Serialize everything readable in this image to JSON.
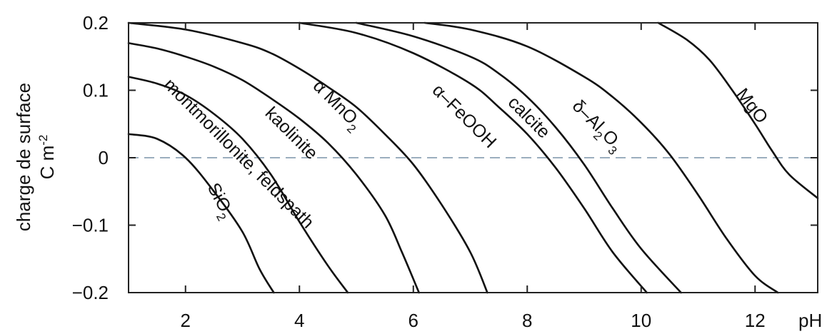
{
  "chart_data": {
    "type": "line",
    "xlabel": "pH",
    "ylabel_line1": "charge de surface",
    "ylabel_line2": "C m",
    "ylabel_sup": "-2",
    "xlim": [
      1,
      13.1
    ],
    "ylim": [
      -0.2,
      0.2
    ],
    "x_ticks": [
      2,
      4,
      6,
      8,
      10,
      12
    ],
    "y_ticks": [
      {
        "value": 0.2,
        "label": "0.2"
      },
      {
        "value": 0.1,
        "label": "0.1"
      },
      {
        "value": 0,
        "label": "0"
      },
      {
        "value": -0.1,
        "label": "−0.1"
      },
      {
        "value": -0.2,
        "label": "−0.2"
      }
    ],
    "reference_line": {
      "y": 0,
      "style": "dashed"
    },
    "series": [
      {
        "name": "SiO2",
        "label_parts": [
          [
            "SiO",
            "normal"
          ],
          [
            "2",
            "sub"
          ]
        ],
        "points": [
          [
            1.0,
            0.035
          ],
          [
            1.5,
            0.028
          ],
          [
            2.0,
            0.0
          ],
          [
            2.5,
            -0.05
          ],
          [
            3.0,
            -0.11
          ],
          [
            3.3,
            -0.165
          ],
          [
            3.55,
            -0.2
          ]
        ]
      },
      {
        "name": "montmorillonite, feldspath",
        "label_parts": [
          [
            "montmorillonite, feldspath",
            "normal"
          ]
        ],
        "points": [
          [
            1.0,
            0.12
          ],
          [
            1.5,
            0.11
          ],
          [
            2.0,
            0.093
          ],
          [
            2.5,
            0.065
          ],
          [
            3.0,
            0.028
          ],
          [
            3.5,
            -0.025
          ],
          [
            4.0,
            -0.095
          ],
          [
            4.5,
            -0.16
          ],
          [
            4.85,
            -0.2
          ]
        ]
      },
      {
        "name": "kaolinite",
        "label_parts": [
          [
            "kaolinite",
            "normal"
          ]
        ],
        "points": [
          [
            1.0,
            0.17
          ],
          [
            1.5,
            0.162
          ],
          [
            2.0,
            0.15
          ],
          [
            2.5,
            0.135
          ],
          [
            3.0,
            0.115
          ],
          [
            3.5,
            0.088
          ],
          [
            4.0,
            0.058
          ],
          [
            4.5,
            0.022
          ],
          [
            5.0,
            -0.025
          ],
          [
            5.5,
            -0.085
          ],
          [
            5.8,
            -0.14
          ],
          [
            6.1,
            -0.2
          ]
        ]
      },
      {
        "name": "α MnO2",
        "label_parts": [
          [
            "α MnO",
            "normal"
          ],
          [
            "2",
            "sub"
          ]
        ],
        "points": [
          [
            1.0,
            0.2
          ],
          [
            2.0,
            0.19
          ],
          [
            3.0,
            0.17
          ],
          [
            3.5,
            0.155
          ],
          [
            4.0,
            0.132
          ],
          [
            4.5,
            0.105
          ],
          [
            5.0,
            0.075
          ],
          [
            5.5,
            0.035
          ],
          [
            6.0,
            -0.01
          ],
          [
            6.5,
            -0.07
          ],
          [
            7.0,
            -0.14
          ],
          [
            7.3,
            -0.2
          ]
        ]
      },
      {
        "name": "α-FeOOH",
        "label_parts": [
          [
            "α–FeOOH",
            "normal"
          ]
        ],
        "points": [
          [
            4.0,
            0.2
          ],
          [
            5.0,
            0.185
          ],
          [
            6.0,
            0.155
          ],
          [
            7.0,
            0.11
          ],
          [
            7.5,
            0.075
          ],
          [
            8.0,
            0.035
          ],
          [
            8.5,
            -0.015
          ],
          [
            9.0,
            -0.075
          ],
          [
            9.5,
            -0.14
          ],
          [
            10.1,
            -0.2
          ]
        ]
      },
      {
        "name": "calcite",
        "label_parts": [
          [
            "calcite",
            "normal"
          ]
        ],
        "points": [
          [
            5.0,
            0.2
          ],
          [
            6.0,
            0.18
          ],
          [
            7.0,
            0.15
          ],
          [
            7.5,
            0.125
          ],
          [
            8.0,
            0.09
          ],
          [
            8.5,
            0.045
          ],
          [
            9.0,
            -0.01
          ],
          [
            9.5,
            -0.075
          ],
          [
            10.0,
            -0.135
          ],
          [
            10.7,
            -0.2
          ]
        ]
      },
      {
        "name": "δ-Al2O3",
        "label_parts": [
          [
            "δ–Al",
            "normal"
          ],
          [
            "2",
            "sub"
          ],
          [
            "O",
            "normal"
          ],
          [
            "3",
            "sub"
          ]
        ],
        "points": [
          [
            6.2,
            0.2
          ],
          [
            7.0,
            0.19
          ],
          [
            8.0,
            0.165
          ],
          [
            9.0,
            0.12
          ],
          [
            9.5,
            0.09
          ],
          [
            10.0,
            0.052
          ],
          [
            10.5,
            0.005
          ],
          [
            11.0,
            -0.055
          ],
          [
            11.5,
            -0.12
          ],
          [
            12.0,
            -0.175
          ],
          [
            12.4,
            -0.2
          ]
        ]
      },
      {
        "name": "MgO",
        "label_parts": [
          [
            "MgO",
            "normal"
          ]
        ],
        "points": [
          [
            10.3,
            0.2
          ],
          [
            10.8,
            0.175
          ],
          [
            11.2,
            0.145
          ],
          [
            11.6,
            0.1
          ],
          [
            12.0,
            0.05
          ],
          [
            12.3,
            0.01
          ],
          [
            12.6,
            -0.025
          ],
          [
            13.1,
            -0.06
          ]
        ]
      }
    ]
  }
}
